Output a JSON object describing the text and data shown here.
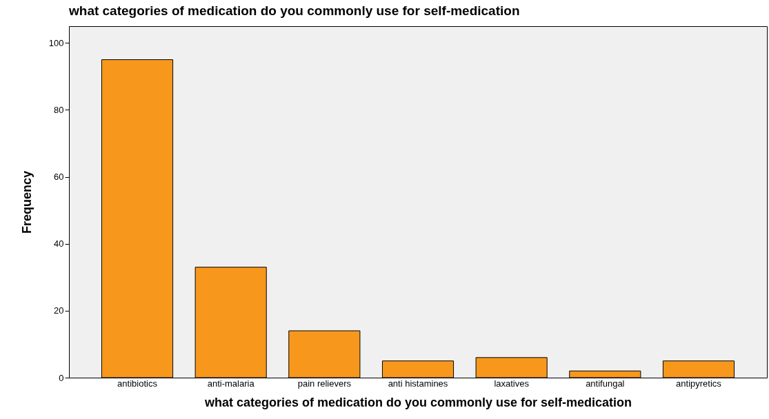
{
  "chart_data": {
    "type": "bar",
    "title": "what categories of medication do you commonly use for self-medication",
    "xlabel": "what categories of medication do you commonly use for self-medication",
    "ylabel": "Frequency",
    "categories": [
      "antibiotics",
      "anti-malaria",
      "pain relievers",
      "anti histamines",
      "laxatives",
      "antifungal",
      "antipyretics"
    ],
    "values": [
      95,
      33,
      14,
      5,
      6,
      2,
      5
    ],
    "color": "#f7981d",
    "ylim": [
      0,
      105
    ],
    "yticks": [
      0,
      20,
      40,
      60,
      80,
      100
    ],
    "grid": false
  }
}
